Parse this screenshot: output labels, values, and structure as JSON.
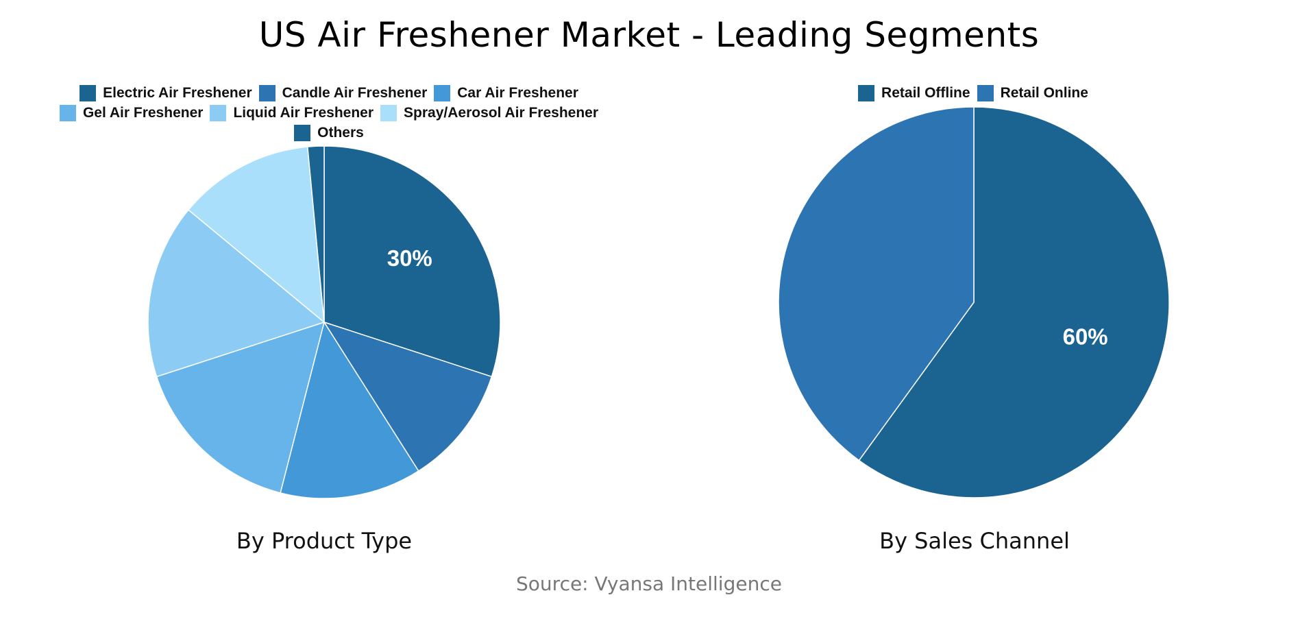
{
  "title": "US Air Freshener Market - Leading Segments",
  "source": "Source: Vyansa Intelligence",
  "chart_data": [
    {
      "type": "pie",
      "caption": "By Product Type",
      "legend_placement": "top",
      "slices": [
        {
          "label": "Electric Air Freshener",
          "value": 30,
          "color": "#1b6492",
          "show_label": "30%"
        },
        {
          "label": "Candle Air Freshener",
          "value": 11,
          "color": "#2d74b2",
          "show_label": ""
        },
        {
          "label": "Car Air Freshener",
          "value": 13,
          "color": "#4398d8",
          "show_label": ""
        },
        {
          "label": "Gel Air Freshener",
          "value": 16,
          "color": "#66b4ea",
          "show_label": ""
        },
        {
          "label": "Liquid Air Freshener",
          "value": 16,
          "color": "#8ccbf4",
          "show_label": ""
        },
        {
          "label": "Spray/Aerosol Air Freshener",
          "value": 12.5,
          "color": "#aadffc",
          "show_label": ""
        },
        {
          "label": "Others",
          "value": 1.5,
          "color": "#1b6492",
          "show_label": ""
        }
      ]
    },
    {
      "type": "pie",
      "caption": "By Sales Channel",
      "legend_placement": "top",
      "slices": [
        {
          "label": "Retail Offline",
          "value": 60,
          "color": "#1b6492",
          "show_label": "60%"
        },
        {
          "label": "Retail Online",
          "value": 40,
          "color": "#2d74b2",
          "show_label": ""
        }
      ]
    }
  ]
}
